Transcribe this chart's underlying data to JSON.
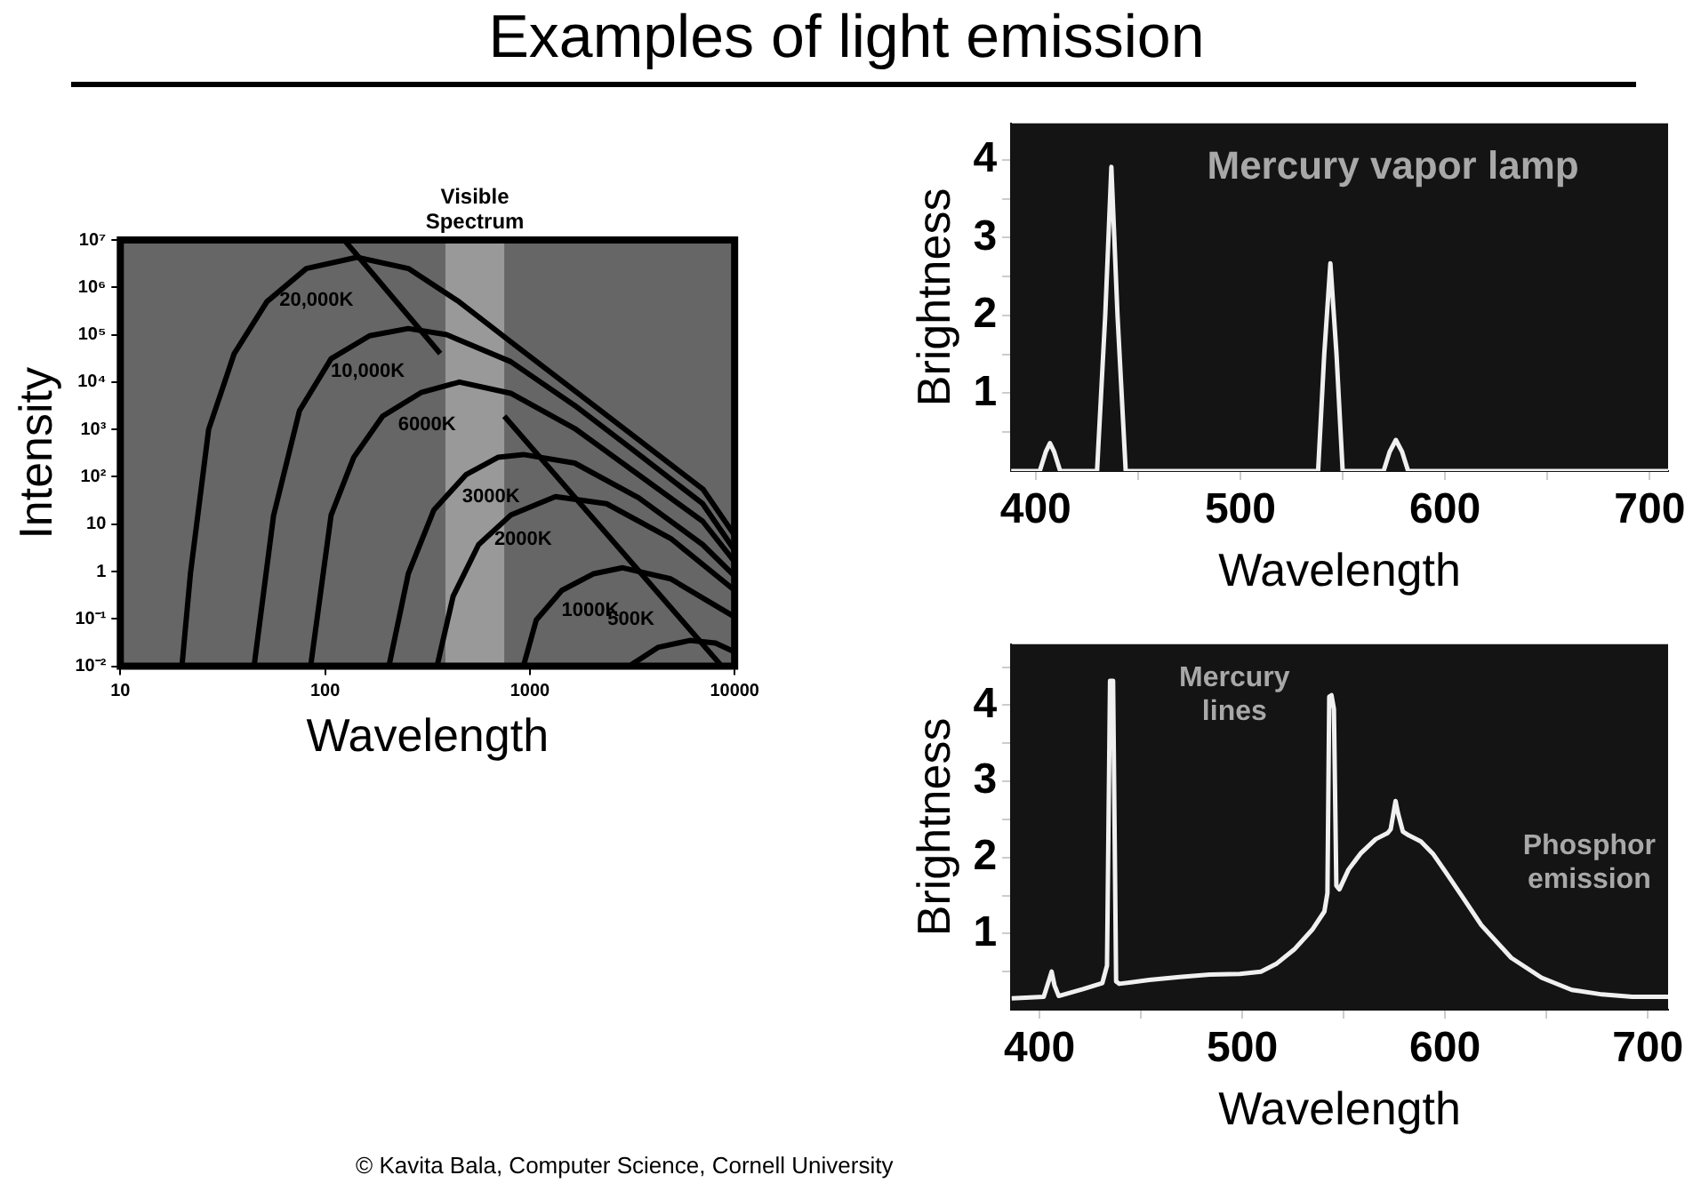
{
  "chart_data": [
    {
      "type": "line",
      "title": "Examples of light emission",
      "xlabel": "Wavelength",
      "ylabel": "Intensity",
      "log": "xy",
      "xlim": [
        10,
        10000
      ],
      "xticks": [
        10,
        100,
        1000,
        10000
      ],
      "ylim": [
        0.01,
        10000000
      ],
      "yticks": [
        {
          "value": 10000000,
          "label": "10⁷"
        },
        {
          "value": 1000000,
          "label": "10⁶"
        },
        {
          "value": 100000,
          "label": "10⁵"
        },
        {
          "value": 10000,
          "label": "10⁴"
        },
        {
          "value": 1000,
          "label": "10³"
        },
        {
          "value": 100,
          "label": "10²"
        },
        10,
        1,
        {
          "value": 0.1,
          "label": "10⁻¹"
        },
        {
          "value": 0.01,
          "label": "10⁻²"
        }
      ],
      "bands": [
        {
          "axis": "x",
          "from": 387,
          "to": 750,
          "label": "Visible Spectrum",
          "color": "#999999"
        }
      ],
      "series": [
        {
          "name": "20,000K",
          "color": "#000000",
          "x": [
            20,
            22,
            27,
            36,
            52,
            81,
            143,
            255,
            450,
            810,
            1650,
            3400,
            7000,
            10000
          ],
          "values": [
            0.01,
            0.9,
            1000,
            40000,
            500000,
            2500000,
            4300000,
            2500000,
            500000,
            70000,
            6600,
            600,
            55,
            5.8
          ]
        },
        {
          "name": "10,000K",
          "color": "#000000",
          "x": [
            45,
            56,
            75,
            107,
            165,
            255,
            392,
            806,
            1655,
            3400,
            6980,
            10000
          ],
          "values": [
            0.01,
            15,
            2500,
            31000,
            95000,
            135000,
            100000,
            27000,
            3200,
            300,
            27,
            2.8
          ]
        },
        {
          "name": "6000K",
          "color": "#000000",
          "x": [
            85,
            107,
            138,
            191,
            294,
            453,
            806,
            1655,
            3400,
            6980,
            10000
          ],
          "values": [
            0.01,
            15.5,
            257,
            1900,
            6000,
            10000,
            5800,
            1050,
            110,
            11.5,
            1.6
          ]
        },
        {
          "name": "3000K",
          "color": "#000000",
          "x": [
            205,
            255,
            340,
            487,
            698,
            930,
            1655,
            3400,
            6980,
            10000
          ],
          "values": [
            0.01,
            0.9,
            20,
            110,
            257,
            295,
            195,
            36,
            3.7,
            0.8
          ]
        },
        {
          "name": "2000K",
          "color": "#000000",
          "x": [
            352,
            422,
            562,
            806,
            1334,
            2370,
            4870,
            10000
          ],
          "values": [
            0.01,
            0.3,
            3.7,
            15.5,
            38,
            27,
            5,
            0.4
          ]
        },
        {
          "name": "1000K",
          "color": "#000000",
          "x": [
            930,
            1075,
            1433,
            2053,
            2840,
            4870,
            10000
          ],
          "values": [
            0.01,
            0.095,
            0.4,
            0.9,
            1.2,
            0.7,
            0.11
          ]
        },
        {
          "name": "500K",
          "color": "#000000",
          "x": [
            3050,
            4220,
            6040,
            8060,
            10000
          ],
          "values": [
            0.01,
            0.025,
            0.035,
            0.031,
            0.02
          ]
        },
        {
          "color": "#000000",
          "x": [
            124,
            365,
            500,
            750,
            8660
          ],
          "values": [
            10000000,
            40000,
            null,
            1900,
            0.01
          ]
        }
      ],
      "annotations": [
        "© Kavita Bala, Computer Science, Cornell University"
      ]
    },
    {
      "type": "line",
      "title": "Mercury vapor lamp",
      "xlabel": "Wavelength",
      "ylabel": "Brightness",
      "xlim": [
        388,
        709
      ],
      "xticks": [
        400,
        {
          "value": 450,
          "label": null
        },
        500,
        {
          "value": 550,
          "label": null
        },
        600,
        {
          "value": 650,
          "label": null
        },
        700
      ],
      "ylim": [
        0,
        4.47
      ],
      "yticks": [
        {
          "value": 0.5,
          "label": null
        },
        1,
        {
          "value": 1.5,
          "label": null
        },
        2,
        {
          "value": 2.5,
          "label": null
        },
        3,
        {
          "value": 3.5,
          "label": null
        },
        4
      ],
      "series": [
        {
          "color": "#f0f0f0",
          "x": [
            388,
            402,
            405,
            407,
            409,
            412,
            430,
            434,
            437,
            440,
            444,
            538,
            541,
            544,
            547,
            550,
            570,
            573,
            576,
            579,
            582,
            709
          ],
          "values": [
            0,
            0,
            0.25,
            0.36,
            0.25,
            0,
            0,
            2,
            3.91,
            2,
            0,
            0,
            1.5,
            2.67,
            1.5,
            0,
            0,
            0.25,
            0.4,
            0.25,
            0,
            0
          ]
        }
      ]
    },
    {
      "type": "line",
      "xlabel": "Wavelength",
      "ylabel": "Brightness",
      "xlim": [
        386,
        710
      ],
      "xticks": [
        400,
        {
          "value": 450,
          "label": null
        },
        500,
        {
          "value": 550,
          "label": null
        },
        600,
        {
          "value": 650,
          "label": null
        },
        700
      ],
      "ylim": [
        0,
        4.8
      ],
      "yticks": [
        {
          "value": 0.5,
          "label": null
        },
        1,
        {
          "value": 1.5,
          "label": null
        },
        2,
        {
          "value": 2.5,
          "label": null
        },
        3,
        {
          "value": 3.5,
          "label": null
        },
        4,
        {
          "value": 4.5,
          "label": null
        }
      ],
      "series": [
        {
          "color": "#f0f0f0",
          "x": [
            386.3,
            402.1,
            404.5,
            406,
            407.4,
            409.5,
            421.4,
            431,
            433.3,
            434.8,
            436.3,
            437.8,
            439.3,
            454.2,
            469,
            483.9,
            498.8,
            509.2,
            516.7,
            525.6,
            534.5,
            540.5,
            542,
            542.9,
            544,
            545.2,
            546.4,
            547.9,
            552.4,
            558.3,
            565.8,
            571.7,
            573.2,
            575.6,
            576.8,
            579.2,
            582.1,
            588.1,
            594,
            600,
            608.9,
            617.9,
            632.7,
            647.6,
            662.5,
            677.4,
            692.3,
            710
          ],
          "values": [
            0.15,
            0.17,
            0.37,
            0.5,
            0.32,
            0.18,
            0.27,
            0.35,
            0.58,
            4.32,
            4.32,
            0.37,
            0.34,
            0.39,
            0.43,
            0.46,
            0.47,
            0.5,
            0.6,
            0.79,
            1.05,
            1.29,
            1.53,
            4.11,
            4.13,
            3.95,
            1.63,
            1.58,
            1.84,
            2.05,
            2.24,
            2.32,
            2.37,
            2.74,
            2.58,
            2.34,
            2.29,
            2.21,
            2.05,
            1.82,
            1.47,
            1.11,
            0.68,
            0.42,
            0.26,
            0.2,
            0.17,
            0.17
          ]
        }
      ],
      "annotations": [
        "Mercury lines",
        "Phosphor emission"
      ]
    }
  ]
}
